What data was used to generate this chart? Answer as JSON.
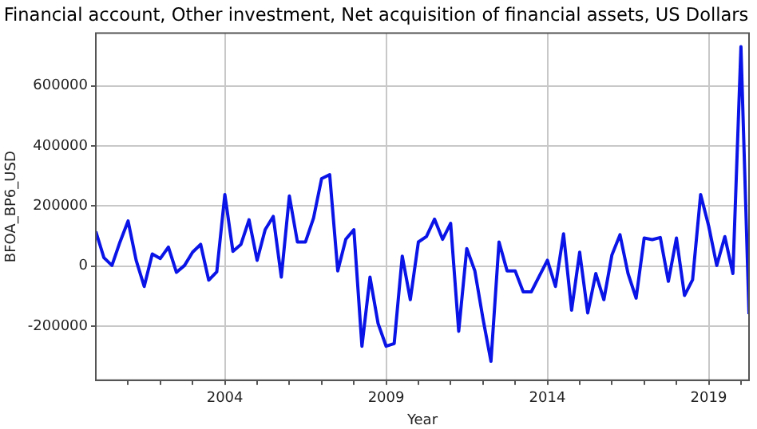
{
  "chart_data": {
    "type": "line",
    "title": "Financial account, Other investment, Net acquisition of financial assets, US Dollars",
    "xlabel": "Year",
    "ylabel": "BFOA_BP6_USD",
    "x": [
      "2000-01",
      "2000-04",
      "2000-07",
      "2000-10",
      "2001-01",
      "2001-04",
      "2001-07",
      "2001-10",
      "2002-01",
      "2002-04",
      "2002-07",
      "2002-10",
      "2003-01",
      "2003-04",
      "2003-07",
      "2003-10",
      "2004-01",
      "2004-04",
      "2004-07",
      "2004-10",
      "2005-01",
      "2005-04",
      "2005-07",
      "2005-10",
      "2006-01",
      "2006-04",
      "2006-07",
      "2006-10",
      "2007-01",
      "2007-04",
      "2007-07",
      "2007-10",
      "2008-01",
      "2008-04",
      "2008-07",
      "2008-10",
      "2009-01",
      "2009-04",
      "2009-07",
      "2009-10",
      "2010-01",
      "2010-04",
      "2010-07",
      "2010-10",
      "2011-01",
      "2011-04",
      "2011-07",
      "2011-10",
      "2012-01",
      "2012-04",
      "2012-07",
      "2012-10",
      "2013-01",
      "2013-04",
      "2013-07",
      "2013-10",
      "2014-01",
      "2014-04",
      "2014-07",
      "2014-10",
      "2015-01",
      "2015-04",
      "2015-07",
      "2015-10",
      "2016-01",
      "2016-04",
      "2016-07",
      "2016-10",
      "2017-01",
      "2017-04",
      "2017-07",
      "2017-10",
      "2018-01",
      "2018-04",
      "2018-07",
      "2018-10",
      "2019-01",
      "2019-04",
      "2019-07",
      "2019-10",
      "2020-01",
      "2020-04"
    ],
    "series": [
      {
        "color": "#0a14e6",
        "values": [
          115000,
          28000,
          2000,
          80000,
          150000,
          19000,
          -68000,
          40000,
          25000,
          63000,
          -21000,
          2000,
          46000,
          72000,
          -47000,
          -19000,
          238000,
          49000,
          72000,
          154000,
          19000,
          121000,
          165000,
          -37000,
          233000,
          80000,
          80000,
          160000,
          291000,
          304000,
          -16000,
          89000,
          121000,
          -267000,
          -37000,
          -191000,
          -267000,
          -258000,
          33000,
          -112000,
          80000,
          98000,
          156000,
          89000,
          142000,
          -217000,
          58000,
          -16000,
          -174000,
          -317000,
          80000,
          -16000,
          -16000,
          -86000,
          -86000,
          -33000,
          19000,
          -68000,
          107000,
          -147000,
          46000,
          -156000,
          -25000,
          -112000,
          37000,
          104000,
          -25000,
          -107000,
          93000,
          88000,
          95000,
          -51000,
          93000,
          -98000,
          -46000,
          238000,
          133000,
          2000,
          98000,
          -25000,
          730000,
          -160000
        ]
      }
    ],
    "xlim": [
      "2000-01",
      "2020-04"
    ],
    "xticks": [
      {
        "value": "2001",
        "label": null
      },
      {
        "value": "2002",
        "label": null
      },
      {
        "value": "2003",
        "label": null
      },
      "2004",
      {
        "value": "2005",
        "label": null
      },
      {
        "value": "2006",
        "label": null
      },
      {
        "value": "2007",
        "label": null
      },
      {
        "value": "2008",
        "label": null
      },
      "2009",
      {
        "value": "2010",
        "label": null
      },
      {
        "value": "2011",
        "label": null
      },
      {
        "value": "2012",
        "label": null
      },
      {
        "value": "2013",
        "label": null
      },
      "2014",
      {
        "value": "2015",
        "label": null
      },
      {
        "value": "2016",
        "label": null
      },
      {
        "value": "2017",
        "label": null
      },
      {
        "value": "2018",
        "label": null
      },
      "2019",
      {
        "value": "2020",
        "label": null
      }
    ],
    "ylim": [
      -380000,
      775000
    ],
    "yticks": [
      -200000,
      0,
      200000,
      400000,
      600000
    ],
    "grid": true,
    "legend": false,
    "marker": "none",
    "line_style": "solid"
  }
}
